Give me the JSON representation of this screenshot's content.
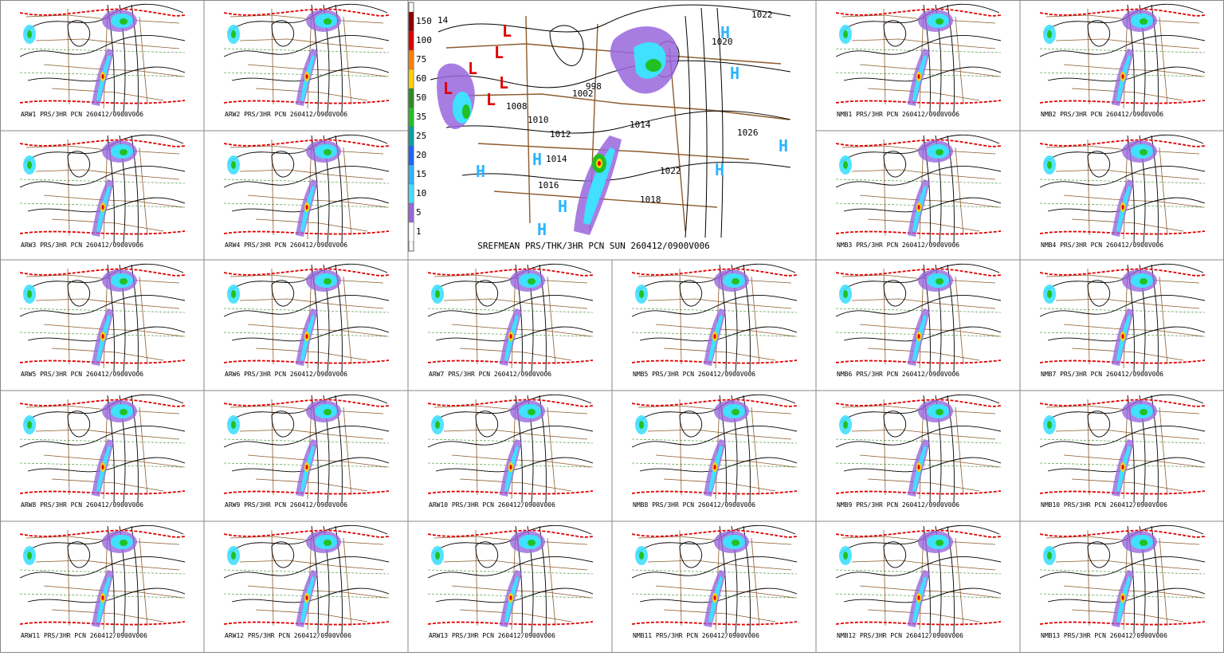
{
  "panels": [
    {
      "caption": "ARW1 PRS/3HR PCN 260412/0900V006"
    },
    {
      "caption": "ARW2 PRS/3HR PCN 260412/0900V006"
    },
    {
      "caption": "NMB1 PRS/3HR PCN 260412/0900V006"
    },
    {
      "caption": "NMB2 PRS/3HR PCN 260412/0900V006"
    },
    {
      "caption": "ARW3 PRS/3HR PCN 260412/0900V006"
    },
    {
      "caption": "ARW4 PRS/3HR PCN 260412/0900V006"
    },
    {
      "caption": "NMB3 PRS/3HR PCN 260412/0900V006"
    },
    {
      "caption": "NMB4 PRS/3HR PCN 260412/0900V006"
    },
    {
      "caption": "ARW5 PRS/3HR PCN 260412/0900V006"
    },
    {
      "caption": "ARW6 PRS/3HR PCN 260412/0900V006"
    },
    {
      "caption": "ARW7 PRS/3HR PCN 260412/0900V006"
    },
    {
      "caption": "NMB5 PRS/3HR PCN 260412/0900V006"
    },
    {
      "caption": "NMB6 PRS/3HR PCN 260412/0900V006"
    },
    {
      "caption": "NMB7 PRS/3HR PCN 260412/0900V006"
    },
    {
      "caption": "ARW8 PRS/3HR PCN 260412/0900V006"
    },
    {
      "caption": "ARW9 PRS/3HR PCN 260412/0900V006"
    },
    {
      "caption": "ARW10 PRS/3HR PCN 260412/0900V006"
    },
    {
      "caption": "NMB8 PRS/3HR PCN 260412/0900V006"
    },
    {
      "caption": "NMB9 PRS/3HR PCN 260412/0900V006"
    },
    {
      "caption": "NMB10 PRS/3HR PCN 260412/0900V006"
    },
    {
      "caption": "ARW11 PRS/3HR PCN 260412/0900V006"
    },
    {
      "caption": "ARW12 PRS/3HR PCN 260412/0900V006"
    },
    {
      "caption": "ARW13 PRS/3HR PCN 260412/0900V006"
    },
    {
      "caption": "NMB11 PRS/3HR PCN 260412/0900V006"
    },
    {
      "caption": "NMB12 PRS/3HR PCN 260412/0900V006"
    },
    {
      "caption": "NMB13 PRS/3HR PCN 260412/0900V006"
    }
  ],
  "main": {
    "caption": "SREFMEAN PRS/THK/3HR PCN SUN 260412/0900V006",
    "legend": {
      "levels": [
        150,
        100,
        75,
        60,
        50,
        35,
        25,
        20,
        15,
        10,
        5,
        1
      ],
      "colors": [
        "#8b0000",
        "#e00000",
        "#ff7f00",
        "#ffd000",
        "#2e8b22",
        "#22c022",
        "#0aa0a0",
        "#1e64ff",
        "#2db4ff",
        "#40e0ff",
        "#9966dd",
        "#ffffff"
      ]
    },
    "labels": [
      "14",
      "1022",
      "1020",
      "998",
      "1002",
      "1008",
      "1010",
      "1012",
      "1014",
      "1026",
      "1022",
      "1018",
      "1016",
      "1014"
    ],
    "highs": [
      "H",
      "H",
      "H",
      "H",
      "H",
      "H",
      "H",
      "H"
    ],
    "lows": [
      "L",
      "L",
      "L",
      "L",
      "L",
      "L"
    ]
  }
}
